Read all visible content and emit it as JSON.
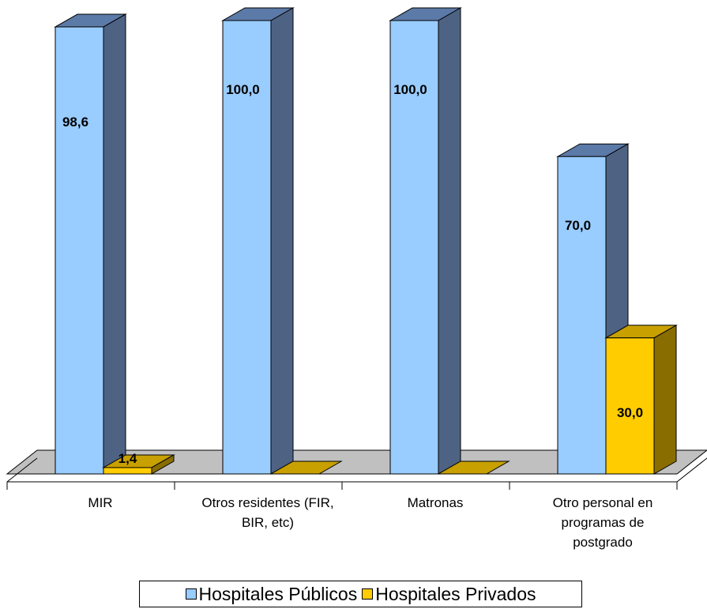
{
  "chart_data": {
    "type": "bar",
    "categories": [
      [
        "MIR"
      ],
      [
        "Otros residentes (FIR,",
        "BIR, etc)"
      ],
      [
        "Matronas"
      ],
      [
        "Otro personal en",
        "programas de",
        "postgrado"
      ]
    ],
    "series": [
      {
        "name": "Hospitales Públicos",
        "values": [
          98.6,
          100.0,
          100.0,
          70.0
        ],
        "labels": [
          "98,6",
          "100,0",
          "100,0",
          "70,0"
        ],
        "color": "#99ccff",
        "side_color": "#4e6384",
        "top_color": "#5c7aa8"
      },
      {
        "name": "Hospitales Privados",
        "values": [
          1.4,
          0,
          0,
          30.0
        ],
        "labels": [
          "1,4",
          "",
          "",
          "30,0"
        ],
        "color": "#ffcc00",
        "side_color": "#8a6d00",
        "top_color": "#c8a000"
      }
    ],
    "ylim": [
      0,
      100
    ],
    "grid": false,
    "three_d": true,
    "legend_position": "bottom"
  }
}
